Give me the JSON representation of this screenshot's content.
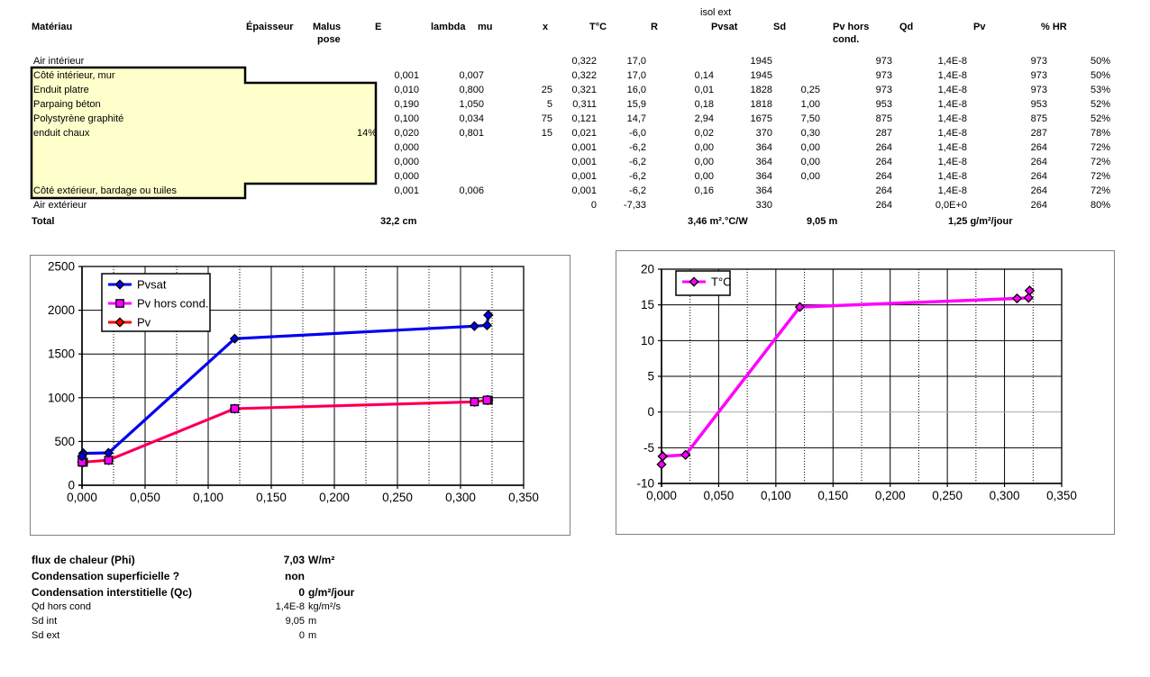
{
  "table": {
    "header": {
      "materiau": "Matériau",
      "epaisseur": "Épaisseur",
      "malus_line1": "Malus",
      "malus_line2": "pose",
      "e": "E",
      "lambda": "lambda",
      "mu": "mu",
      "x": "x",
      "tc": "T°C",
      "r": "R",
      "isol_ext": "isol ext",
      "pvsat": "Pvsat",
      "sd": "Sd",
      "pv_hors_line1": "Pv hors",
      "pv_hors_line2": "cond.",
      "qd": "Qd",
      "pv": "Pv",
      "hr": "% HR"
    },
    "rows": [
      {
        "name": "Air intérieur",
        "malus": "",
        "e": "",
        "lambda": "",
        "mu": "",
        "x": "0,322",
        "tc": "17,0",
        "r": "",
        "pvsat": "1945",
        "sd": "",
        "pv_hors": "973",
        "qd": "1,4E-8",
        "pv": "973",
        "hr": "50%"
      },
      {
        "name": "Côté intérieur, mur",
        "malus": "",
        "e": "0,001",
        "lambda": "0,007",
        "mu": "",
        "x": "0,322",
        "tc": "17,0",
        "r": "0,14",
        "pvsat": "1945",
        "sd": "",
        "pv_hors": "973",
        "qd": "1,4E-8",
        "pv": "973",
        "hr": "50%"
      },
      {
        "name": "Enduit platre",
        "malus": "",
        "e": "0,010",
        "lambda": "0,800",
        "mu": "25",
        "x": "0,321",
        "tc": "16,0",
        "r": "0,01",
        "pvsat": "1828",
        "sd": "0,25",
        "pv_hors": "973",
        "qd": "1,4E-8",
        "pv": "973",
        "hr": "53%"
      },
      {
        "name": "Parpaing béton",
        "malus": "",
        "e": "0,190",
        "lambda": "1,050",
        "mu": "5",
        "x": "0,311",
        "tc": "15,9",
        "r": "0,18",
        "pvsat": "1818",
        "sd": "1,00",
        "pv_hors": "953",
        "qd": "1,4E-8",
        "pv": "953",
        "hr": "52%"
      },
      {
        "name": "Polystyrène graphité",
        "malus": "",
        "e": "0,100",
        "lambda": "0,034",
        "mu": "75",
        "x": "0,121",
        "tc": "14,7",
        "r": "2,94",
        "pvsat": "1675",
        "sd": "7,50",
        "pv_hors": "875",
        "qd": "1,4E-8",
        "pv": "875",
        "hr": "52%"
      },
      {
        "name": "enduit chaux",
        "malus": "14%",
        "e": "0,020",
        "lambda": "0,801",
        "mu": "15",
        "x": "0,021",
        "tc": "-6,0",
        "r": "0,02",
        "pvsat": "370",
        "sd": "0,30",
        "pv_hors": "287",
        "qd": "1,4E-8",
        "pv": "287",
        "hr": "78%"
      },
      {
        "name": "",
        "malus": "",
        "e": "0,000",
        "lambda": "",
        "mu": "",
        "x": "0,001",
        "tc": "-6,2",
        "r": "0,00",
        "pvsat": "364",
        "sd": "0,00",
        "pv_hors": "264",
        "qd": "1,4E-8",
        "pv": "264",
        "hr": "72%"
      },
      {
        "name": "",
        "malus": "",
        "e": "0,000",
        "lambda": "",
        "mu": "",
        "x": "0,001",
        "tc": "-6,2",
        "r": "0,00",
        "pvsat": "364",
        "sd": "0,00",
        "pv_hors": "264",
        "qd": "1,4E-8",
        "pv": "264",
        "hr": "72%"
      },
      {
        "name": "",
        "malus": "",
        "e": "0,000",
        "lambda": "",
        "mu": "",
        "x": "0,001",
        "tc": "-6,2",
        "r": "0,00",
        "pvsat": "364",
        "sd": "0,00",
        "pv_hors": "264",
        "qd": "1,4E-8",
        "pv": "264",
        "hr": "72%"
      },
      {
        "name": "Côté extérieur, bardage ou tuiles",
        "malus": "",
        "e": "0,001",
        "lambda": "0,006",
        "mu": "",
        "x": "0,001",
        "tc": "-6,2",
        "r": "0,16",
        "pvsat": "364",
        "sd": "",
        "pv_hors": "264",
        "qd": "1,4E-8",
        "pv": "264",
        "hr": "72%"
      },
      {
        "name": "Air extérieur",
        "malus": "",
        "e": "",
        "lambda": "",
        "mu": "",
        "x": "0",
        "tc": "-7,33",
        "r": "",
        "pvsat": "330",
        "sd": "",
        "pv_hors": "264",
        "qd": "0,0E+0",
        "pv": "264",
        "hr": "80%"
      }
    ],
    "total": {
      "label": "Total",
      "epaisseur_total": "32,2 cm",
      "r_total": "3,46 m².°C/W",
      "sd_total": "9,05 m",
      "flux_total": "1,25 g/m²/jour"
    },
    "wall_fill_color": "#FFFFCC"
  },
  "summary": {
    "rows": [
      {
        "label": "flux de chaleur (Phi)",
        "value": "7,03",
        "unit": "W/m²",
        "bold": true
      },
      {
        "label": "Condensation superficielle ?",
        "value": "non",
        "unit": "",
        "bold": true
      },
      {
        "label": "Condensation interstitielle (Qc)",
        "value": "0",
        "unit": "g/m²/jour",
        "bold": true
      },
      {
        "label": "Qd hors cond",
        "value": "1,4E-8",
        "unit": "kg/m²/s",
        "bold": false
      },
      {
        "label": "Sd int",
        "value": "9,05",
        "unit": "m",
        "bold": false
      },
      {
        "label": "Sd ext",
        "value": "0",
        "unit": "m",
        "bold": false
      }
    ]
  },
  "chart_data": [
    {
      "type": "line",
      "title": "",
      "xlabel": "",
      "ylabel": "",
      "xlim": [
        0,
        0.35
      ],
      "ylim": [
        0,
        2500
      ],
      "x_ticks": [
        "0,000",
        "0,050",
        "0,100",
        "0,150",
        "0,200",
        "0,250",
        "0,300",
        "0,350"
      ],
      "y_ticks": [
        "0",
        "500",
        "1000",
        "1500",
        "2000",
        "2500"
      ],
      "x_minor_step": 0.025,
      "grid": true,
      "legend_position": "top-left-inside",
      "x": [
        0.322,
        0.322,
        0.321,
        0.311,
        0.121,
        0.021,
        0.001,
        0.001,
        0.001,
        0.001,
        0
      ],
      "series": [
        {
          "name": "Pvsat",
          "color": "#0000EE",
          "marker": "diamond",
          "line_width": 3.2,
          "values": [
            1945,
            1945,
            1828,
            1818,
            1675,
            370,
            364,
            364,
            364,
            364,
            330
          ]
        },
        {
          "name": "Pv hors cond.",
          "color": "#FF00FF",
          "marker": "square",
          "line_width": 3.2,
          "values": [
            973,
            973,
            973,
            953,
            875,
            287,
            264,
            264,
            264,
            264,
            264
          ]
        },
        {
          "name": "Pv",
          "color": "#FF0000",
          "marker": "diamond",
          "line_width": 2,
          "values": [
            973,
            973,
            973,
            953,
            875,
            287,
            264,
            264,
            264,
            264,
            264
          ]
        }
      ]
    },
    {
      "type": "line",
      "title": "",
      "xlabel": "",
      "ylabel": "",
      "xlim": [
        0,
        0.35
      ],
      "ylim": [
        -10,
        20
      ],
      "x_ticks": [
        "0,000",
        "0,050",
        "0,100",
        "0,150",
        "0,200",
        "0,250",
        "0,300",
        "0,350"
      ],
      "y_ticks": [
        "-10",
        "-5",
        "0",
        "5",
        "10",
        "15",
        "20"
      ],
      "x_minor_step": 0.025,
      "grid": true,
      "zero_line_gray": true,
      "legend_position": "top-left-inside",
      "x": [
        0.322,
        0.322,
        0.321,
        0.311,
        0.121,
        0.021,
        0.001,
        0.001,
        0.001,
        0.001,
        0
      ],
      "series": [
        {
          "name": "T°C",
          "color": "#FF00FF",
          "marker": "diamond",
          "line_width": 3.5,
          "values": [
            17,
            17,
            16,
            15.9,
            14.7,
            -6,
            -6.2,
            -6.2,
            -6.2,
            -6.2,
            -7.33
          ]
        }
      ]
    }
  ]
}
